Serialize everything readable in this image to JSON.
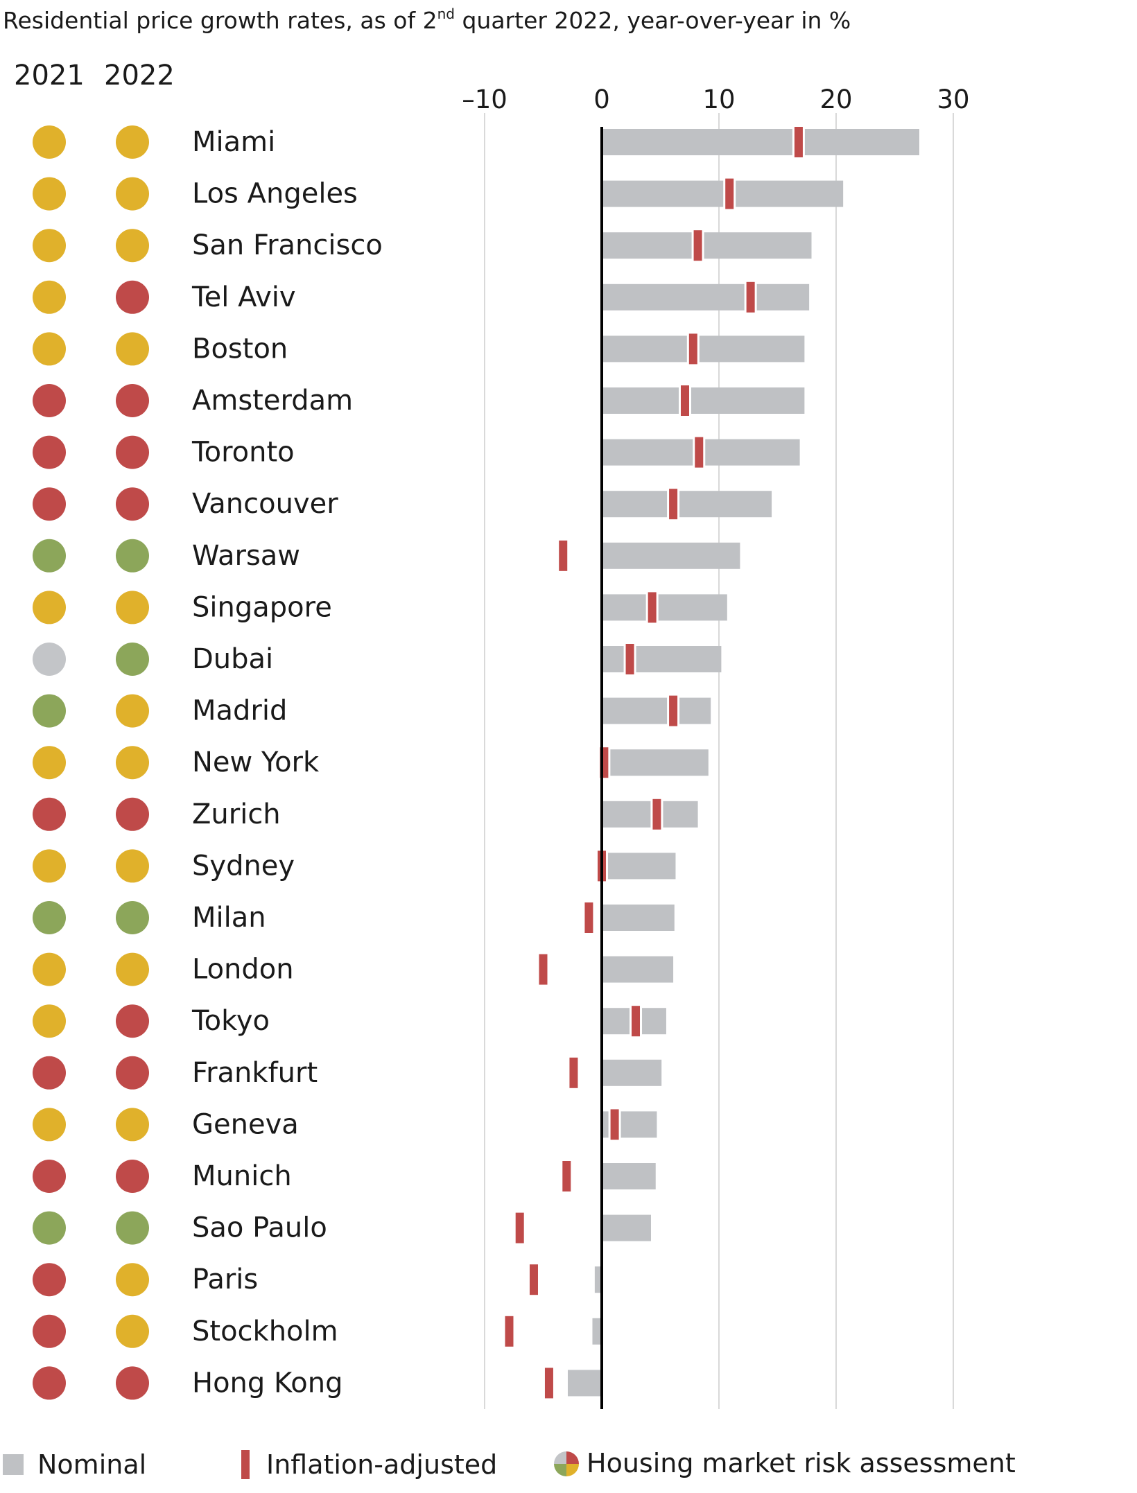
{
  "header": {
    "title_pre": "Residential price growth rates, as of 2",
    "title_sup": "nd",
    "title_post": " quarter 2022, year-over-year in %"
  },
  "columns": {
    "year_a": "2021",
    "year_b": "2022"
  },
  "legend": {
    "nominal": "Nominal",
    "inflation_adjusted": "Inflation-adjusted",
    "risk": "Housing market risk assessment"
  },
  "colors": {
    "nominal_bar": "#bfc1c4",
    "inflation_mark": "#bf4a49",
    "zero_line": "#000000",
    "grid": "#d9d9d9",
    "risk_colors": {
      "yellow": "#e0b12b",
      "red": "#bf4a49",
      "green": "#8ca65a",
      "gray": "#c3c5c8"
    }
  },
  "chart_data": {
    "type": "bar",
    "orientation": "horizontal",
    "xlim": [
      -10,
      30
    ],
    "xticks": [
      -10,
      0,
      10,
      20,
      30
    ],
    "xtick_labels": [
      "–10",
      "0",
      "10",
      "20",
      "30"
    ],
    "grid": true,
    "legend_position": "bottom",
    "categories": [
      "Miami",
      "Los Angeles",
      "San Francisco",
      "Tel Aviv",
      "Boston",
      "Amsterdam",
      "Toronto",
      "Vancouver",
      "Warsaw",
      "Singapore",
      "Dubai",
      "Madrid",
      "New York",
      "Zurich",
      "Sydney",
      "Milan",
      "London",
      "Tokyo",
      "Frankfurt",
      "Geneva",
      "Munich",
      "Sao Paulo",
      "Paris",
      "Stockholm",
      "Hong Kong"
    ],
    "series": [
      {
        "name": "Nominal",
        "values": [
          27.1,
          20.6,
          17.9,
          17.7,
          17.3,
          17.3,
          16.9,
          14.5,
          11.8,
          10.7,
          10.2,
          9.3,
          9.1,
          8.2,
          6.3,
          6.2,
          6.1,
          5.5,
          5.1,
          4.7,
          4.6,
          4.2,
          -0.6,
          -0.8,
          -2.9
        ]
      },
      {
        "name": "Inflation-adjusted",
        "values": [
          16.8,
          10.9,
          8.2,
          12.7,
          7.8,
          7.1,
          8.3,
          6.1,
          -3.3,
          4.3,
          2.4,
          6.1,
          0.2,
          4.7,
          0.0,
          -1.1,
          -5.0,
          2.9,
          -2.4,
          1.1,
          -3.0,
          -7.0,
          -5.8,
          -7.9,
          -4.5
        ]
      }
    ],
    "risk_2021": [
      "yellow",
      "yellow",
      "yellow",
      "yellow",
      "yellow",
      "red",
      "red",
      "red",
      "green",
      "yellow",
      "gray",
      "green",
      "yellow",
      "red",
      "yellow",
      "green",
      "yellow",
      "yellow",
      "red",
      "yellow",
      "red",
      "green",
      "red",
      "red",
      "red"
    ],
    "risk_2022": [
      "yellow",
      "yellow",
      "yellow",
      "red",
      "yellow",
      "red",
      "red",
      "red",
      "green",
      "yellow",
      "green",
      "yellow",
      "yellow",
      "red",
      "yellow",
      "green",
      "yellow",
      "red",
      "red",
      "yellow",
      "red",
      "green",
      "yellow",
      "yellow",
      "red"
    ]
  }
}
